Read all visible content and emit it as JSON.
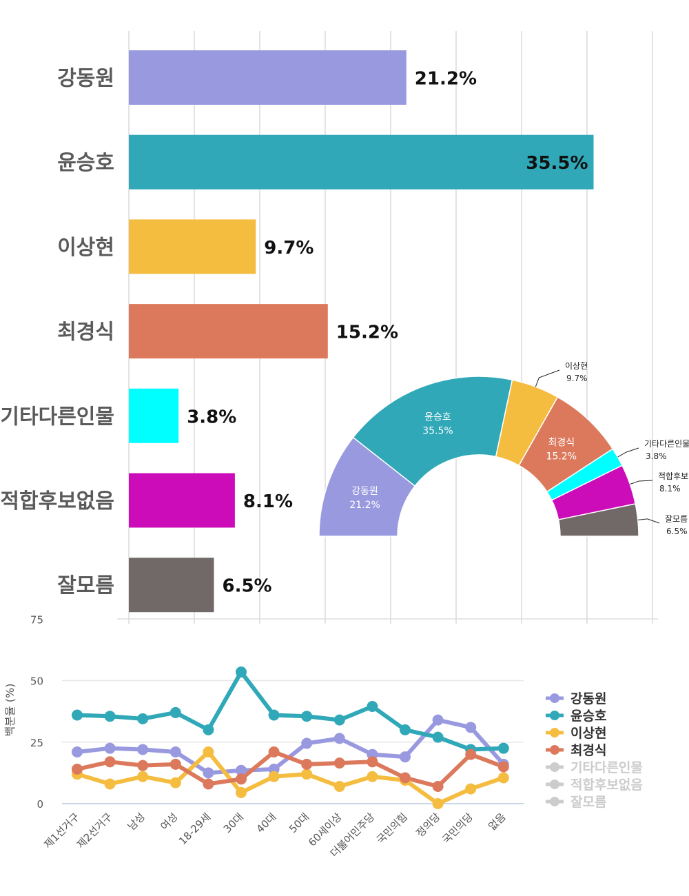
{
  "chart_data": [
    {
      "type": "bar",
      "orientation": "horizontal",
      "categories": [
        "강동원",
        "윤승호",
        "이상현",
        "최경식",
        "기타다른인물",
        "적합후보없음",
        "잘모름"
      ],
      "values": [
        21.2,
        35.5,
        9.7,
        15.2,
        3.8,
        8.1,
        6.5
      ],
      "labels": [
        "21.2%",
        "35.5%",
        "9.7%",
        "15.2%",
        "3.8%",
        "8.1%",
        "6.5%"
      ],
      "colors": [
        "#9999df",
        "#30a8b8",
        "#f5bd40",
        "#dc795c",
        "#00ffff",
        "#cc0cb8",
        "#716868"
      ],
      "xlim": [
        0,
        40
      ],
      "grid": true
    },
    {
      "type": "pie",
      "variant": "semi-donut",
      "categories": [
        "강동원",
        "윤승호",
        "이상현",
        "최경식",
        "기타다른인물",
        "적합후보없음",
        "잘모름"
      ],
      "values": [
        21.2,
        35.5,
        9.7,
        15.2,
        3.8,
        8.1,
        6.5
      ],
      "labels": [
        "21.2%",
        "35.5%",
        "9.7%",
        "15.2%",
        "3.8%",
        "8.1%",
        "6.5%"
      ],
      "colors": [
        "#9999df",
        "#30a8b8",
        "#f5bd40",
        "#dc795c",
        "#00ffff",
        "#cc0cb8",
        "#716868"
      ]
    },
    {
      "type": "line",
      "ylabel": "백분율 (%)",
      "ylim": [
        0,
        75
      ],
      "yticks": [
        "0",
        "25",
        "50",
        "75"
      ],
      "categories": [
        "제1선거구",
        "제2선거구",
        "남성",
        "여성",
        "18-29세",
        "30대",
        "40대",
        "50대",
        "60세이상",
        "더불어민주당",
        "국민의힘",
        "정의당",
        "국민의당",
        "없음"
      ],
      "series": [
        {
          "name": "강동원",
          "color": "#9999df",
          "values": [
            21,
            22.5,
            22,
            21,
            12.5,
            13.5,
            14,
            24.5,
            26.5,
            20,
            19,
            34,
            31,
            16
          ]
        },
        {
          "name": "윤승호",
          "color": "#30a8b8",
          "values": [
            36,
            35.5,
            34.5,
            37,
            30,
            53.5,
            36,
            35.5,
            34,
            39.5,
            30,
            27,
            22,
            22.5
          ]
        },
        {
          "name": "이상현",
          "color": "#f5bd40",
          "values": [
            12,
            8,
            11,
            8.5,
            21,
            4.5,
            11,
            12,
            7,
            11,
            9.5,
            0,
            6,
            10.5
          ]
        },
        {
          "name": "최경식",
          "color": "#dc795c",
          "values": [
            14,
            17,
            15.5,
            16,
            8,
            10,
            21,
            16,
            16.5,
            17,
            10.5,
            7,
            20,
            15
          ]
        }
      ],
      "legend": {
        "position": "right",
        "items": [
          {
            "name": "강동원",
            "color": "#9999df",
            "active": true
          },
          {
            "name": "윤승호",
            "color": "#30a8b8",
            "active": true
          },
          {
            "name": "이상현",
            "color": "#f5bd40",
            "active": true
          },
          {
            "name": "최경식",
            "color": "#dc795c",
            "active": true
          },
          {
            "name": "기타다른인물",
            "color": "#cccccc",
            "active": false
          },
          {
            "name": "적합후보없음",
            "color": "#cccccc",
            "active": false
          },
          {
            "name": "잘모름",
            "color": "#cccccc",
            "active": false
          }
        ]
      },
      "grid": true
    }
  ]
}
